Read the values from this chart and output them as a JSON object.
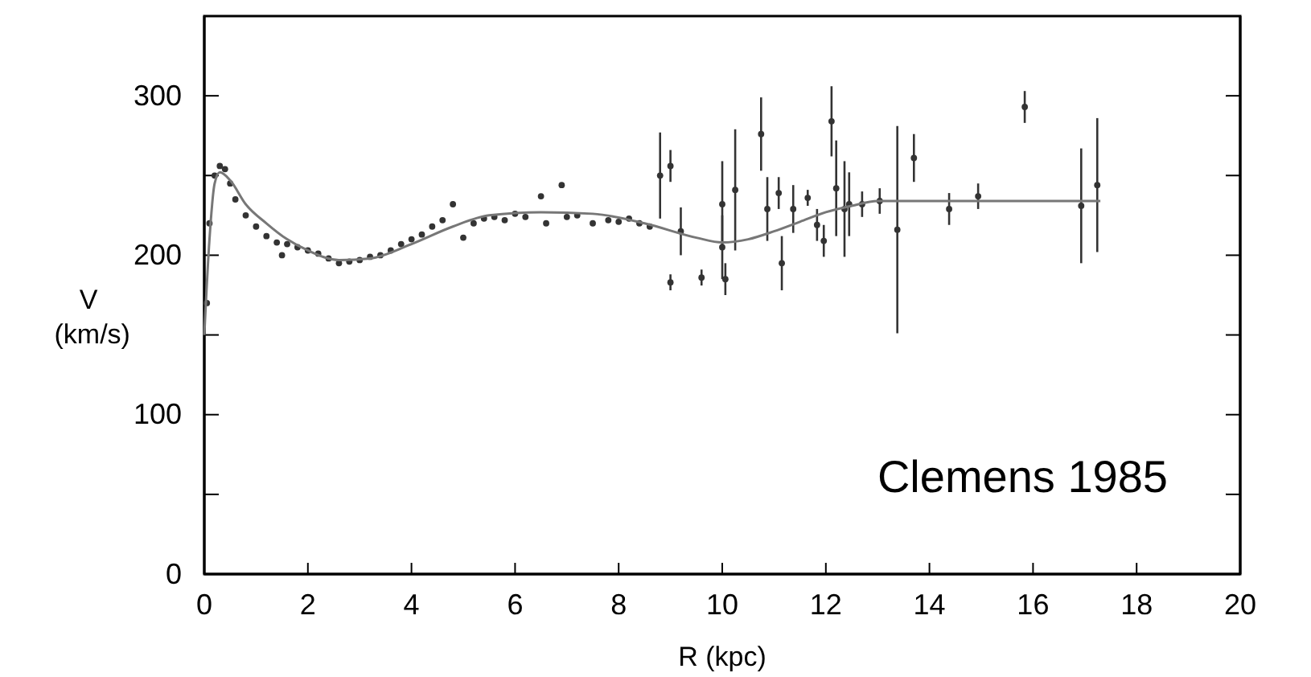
{
  "chart_data": {
    "type": "scatter",
    "xlabel": "R (kpc)",
    "ylabel": "V (km/s)",
    "xlim": [
      0,
      20
    ],
    "xticks": [
      0,
      2,
      4,
      6,
      8,
      10,
      12,
      14,
      16,
      18,
      20
    ],
    "ylim": [
      0,
      350
    ],
    "yticks": [
      0,
      {
        "value": 50,
        "label": null
      },
      100,
      {
        "value": 150,
        "label": null
      },
      200,
      {
        "value": 250,
        "label": null
      },
      300
    ],
    "grid": false,
    "annotations": [
      "Clemens 1985"
    ],
    "series": [
      {
        "marker": "circle",
        "color": "#333333",
        "x": [
          0.05,
          0.1,
          0.2,
          0.3,
          0.4,
          0.5,
          0.6,
          0.8,
          1.0,
          1.2,
          1.4,
          1.5,
          1.6,
          1.8,
          2.0,
          2.2,
          2.4,
          2.6,
          2.8,
          3.0,
          3.2,
          3.4,
          3.6,
          3.8,
          4.0,
          4.2,
          4.4,
          4.6,
          4.8,
          5.0,
          5.2,
          5.4,
          5.6,
          5.8,
          6.0,
          6.2,
          6.5,
          6.6,
          6.9,
          7.0,
          7.2,
          7.5,
          7.8,
          8.0,
          8.2,
          8.4,
          8.6
        ],
        "values": [
          170,
          220,
          250,
          256,
          254,
          245,
          235,
          225,
          218,
          212,
          208,
          200,
          207,
          205,
          203,
          201,
          198,
          195,
          196,
          197,
          199,
          200,
          203,
          207,
          210,
          213,
          218,
          222,
          232,
          211,
          220,
          223,
          224,
          222,
          226,
          224,
          237,
          220,
          244,
          224,
          225,
          220,
          222,
          221,
          223,
          220,
          218
        ]
      },
      {
        "marker": "circle",
        "color": "#333333",
        "x": [
          8.8,
          9.0,
          9.0,
          9.2,
          9.6,
          10.0,
          10.0,
          10.06,
          10.25,
          10.75,
          10.87,
          11.09,
          11.15,
          11.37,
          11.65,
          11.83,
          11.96,
          12.11,
          12.2,
          12.36,
          12.45,
          12.7,
          13.04,
          13.38,
          13.7,
          14.38,
          14.94,
          15.84,
          16.93,
          17.24
        ],
        "values": [
          250,
          256,
          183,
          215,
          186,
          232,
          205,
          185,
          241,
          276,
          229,
          239,
          195,
          229,
          236,
          219,
          209,
          284,
          242,
          229,
          232,
          232,
          234,
          216,
          261,
          229,
          237,
          293,
          231,
          244
        ],
        "errors": [
          27,
          10,
          5,
          15,
          5,
          27,
          20,
          10,
          38,
          23,
          20,
          10,
          17,
          15,
          5,
          10,
          10,
          22,
          30,
          30,
          20,
          8,
          8,
          65,
          15,
          10,
          8,
          10,
          36,
          42
        ]
      },
      {
        "type": "line",
        "marker": "none",
        "color": "#777777",
        "x": [
          0,
          0.1,
          0.2,
          0.3,
          0.5,
          0.8,
          1.2,
          1.6,
          2.0,
          2.6,
          3.2,
          4.0,
          4.8,
          5.5,
          6.5,
          7.5,
          8.5,
          9.5,
          10.0,
          10.5,
          11.0,
          11.5,
          12.0,
          12.5,
          13.0,
          13.4,
          17.3
        ],
        "values": [
          150,
          210,
          245,
          252,
          247,
          232,
          220,
          210,
          203,
          197,
          198,
          207,
          218,
          225,
          227,
          226,
          220,
          211,
          208,
          210,
          215,
          221,
          227,
          231,
          234,
          234,
          234
        ]
      }
    ]
  }
}
